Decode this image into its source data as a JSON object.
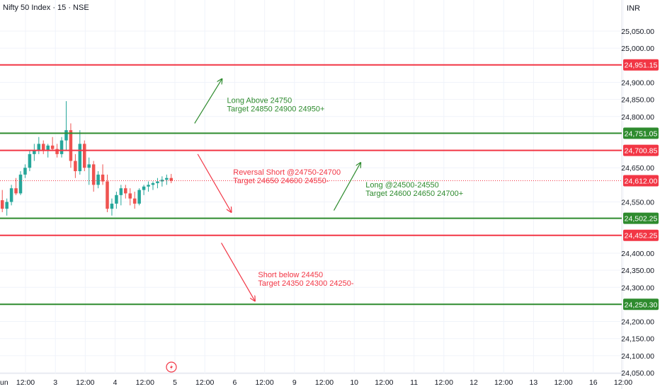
{
  "header": {
    "title": "Nifty 50 Index · 15 · NSE",
    "currency": "INR"
  },
  "colors": {
    "background": "#ffffff",
    "grid": "#f0f3fa",
    "axis_text": "#131722",
    "red_line": "#f23645",
    "green_line": "#2e8b2e",
    "price_line": "#f23645",
    "candle_up": "#26a69a",
    "candle_down": "#ef5350",
    "annotation_green": "#2e8b2e",
    "annotation_red": "#f23645",
    "current_price_bg": "#f23645"
  },
  "chart_data": {
    "type": "candlestick",
    "title": "",
    "xlabel": "",
    "ylabel": "",
    "ylim": [
      24040,
      25080
    ],
    "y_ticks": [
      25050,
      25000,
      24900,
      24850,
      24800,
      24650,
      24550,
      24400,
      24350,
      24300,
      24200,
      24150,
      24100,
      24050
    ],
    "y_tick_labels": [
      "25,050.00",
      "25,000.00",
      "24,900.00",
      "24,850.00",
      "24,800.00",
      "24,650.00",
      "24,550.00",
      "24,400.00",
      "24,350.00",
      "24,300.00",
      "24,200.00",
      "24,150.00",
      "24,100.00",
      "24,050.00"
    ],
    "x_tick_labels": [
      "Jun",
      "12:00",
      "3",
      "12:00",
      "4",
      "12:00",
      "5",
      "12:00",
      "6",
      "12:00",
      "9",
      "12:00",
      "10",
      "12:00",
      "11",
      "12:00",
      "12",
      "12:00",
      "13",
      "12:00",
      "16",
      "12:00"
    ],
    "horizontal_levels": [
      {
        "value": 24951.15,
        "label": "24,951.15",
        "color": "red"
      },
      {
        "value": 24751.05,
        "label": "24,751.05",
        "color": "green"
      },
      {
        "value": 24700.85,
        "label": "24,700.85",
        "color": "red"
      },
      {
        "value": 24502.25,
        "label": "24,502.25",
        "color": "green"
      },
      {
        "value": 24452.25,
        "label": "24,452.25",
        "color": "red"
      },
      {
        "value": 24250.3,
        "label": "24,250.30",
        "color": "green"
      }
    ],
    "current_price": {
      "value": 24612.0,
      "label": "24,612.00"
    },
    "candles": [
      [
        24555,
        24585,
        24520,
        24530
      ],
      [
        24530,
        24560,
        24510,
        24550
      ],
      [
        24550,
        24600,
        24540,
        24590
      ],
      [
        24590,
        24620,
        24570,
        24575
      ],
      [
        24575,
        24640,
        24570,
        24630
      ],
      [
        24630,
        24660,
        24620,
        24650
      ],
      [
        24650,
        24700,
        24640,
        24690
      ],
      [
        24690,
        24720,
        24670,
        24700
      ],
      [
        24700,
        24740,
        24690,
        24720
      ],
      [
        24720,
        24730,
        24690,
        24700
      ],
      [
        24700,
        24720,
        24680,
        24715
      ],
      [
        24715,
        24740,
        24700,
        24705
      ],
      [
        24705,
        24720,
        24680,
        24690
      ],
      [
        24690,
        24740,
        24680,
        24730
      ],
      [
        24730,
        24845,
        24700,
        24760
      ],
      [
        24760,
        24780,
        24650,
        24670
      ],
      [
        24670,
        24690,
        24620,
        24640
      ],
      [
        24640,
        24760,
        24630,
        24720
      ],
      [
        24720,
        24730,
        24640,
        24650
      ],
      [
        24650,
        24680,
        24600,
        24660
      ],
      [
        24660,
        24670,
        24580,
        24600
      ],
      [
        24600,
        24640,
        24590,
        24630
      ],
      [
        24630,
        24660,
        24600,
        24610
      ],
      [
        24610,
        24630,
        24520,
        24530
      ],
      [
        24530,
        24560,
        24510,
        24545
      ],
      [
        24545,
        24580,
        24530,
        24570
      ],
      [
        24570,
        24600,
        24540,
        24590
      ],
      [
        24590,
        24600,
        24560,
        24575
      ],
      [
        24575,
        24590,
        24540,
        24560
      ],
      [
        24560,
        24580,
        24530,
        24545
      ],
      [
        24545,
        24590,
        24540,
        24585
      ],
      [
        24585,
        24600,
        24570,
        24595
      ],
      [
        24595,
        24610,
        24580,
        24600
      ],
      [
        24600,
        24610,
        24585,
        24605
      ],
      [
        24605,
        24620,
        24590,
        24610
      ],
      [
        24610,
        24625,
        24595,
        24615
      ],
      [
        24615,
        24630,
        24600,
        24620
      ],
      [
        24620,
        24632,
        24605,
        24612
      ]
    ],
    "candles_x_range": [
      0,
      245
    ],
    "annotations": [
      {
        "lines": [
          "Long Above 24750",
          "Target 24850 24900 24950+"
        ],
        "color": "green",
        "anchor_value": 24840,
        "x_frac": 0.365
      },
      {
        "lines": [
          "Reversal Short @24750-24700",
          "Target 24650 24600 24550-"
        ],
        "color": "red",
        "anchor_value": 24630,
        "x_frac": 0.375
      },
      {
        "lines": [
          "Long @24500-24550",
          "Target 24600 24650 24700+"
        ],
        "color": "green",
        "anchor_value": 24592,
        "x_frac": 0.588
      },
      {
        "lines": [
          "Short below 24450",
          "Target 24350 24300 24250-"
        ],
        "color": "red",
        "anchor_value": 24330,
        "x_frac": 0.415
      }
    ],
    "arrows": [
      {
        "from": [
          0.313,
          24780
        ],
        "to": [
          0.357,
          24910
        ],
        "color": "green"
      },
      {
        "from": [
          0.318,
          24690
        ],
        "to": [
          0.372,
          24520
        ],
        "color": "red"
      },
      {
        "from": [
          0.537,
          24525
        ],
        "to": [
          0.58,
          24665
        ],
        "color": "green"
      },
      {
        "from": [
          0.356,
          24430
        ],
        "to": [
          0.41,
          24260
        ],
        "color": "red"
      }
    ]
  }
}
